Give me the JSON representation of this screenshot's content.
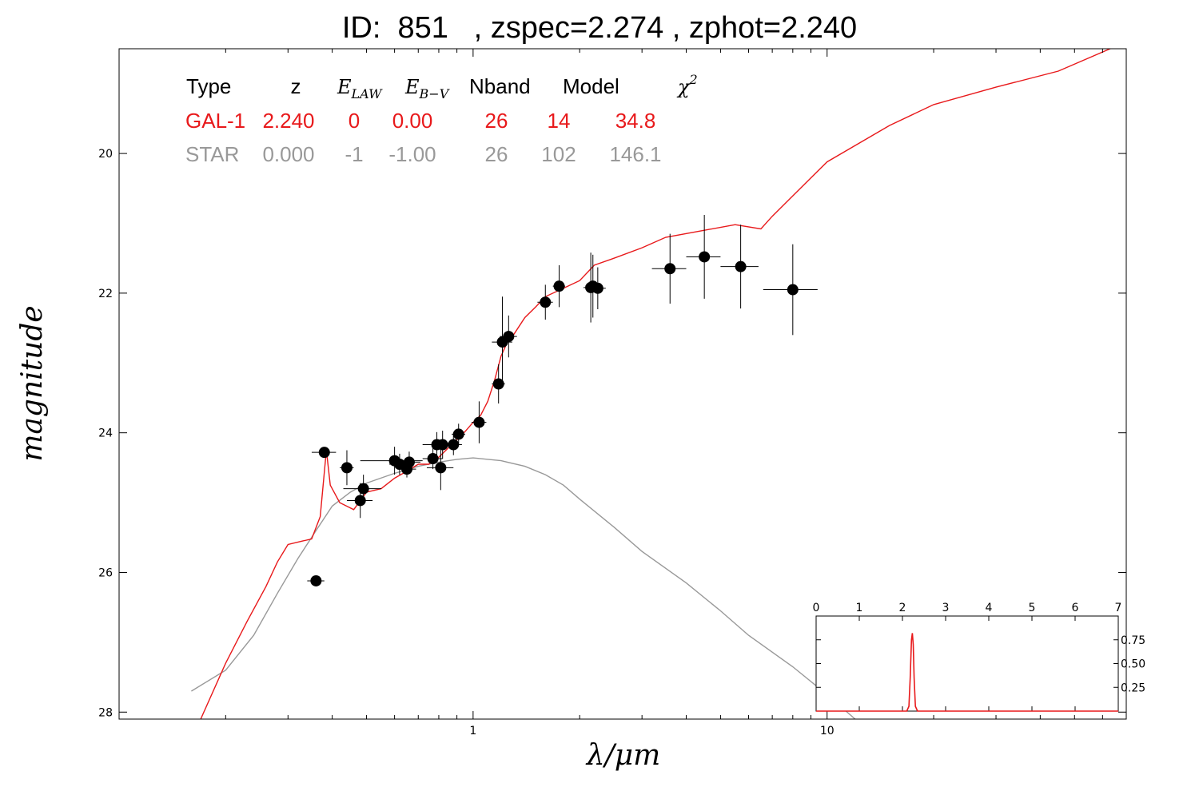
{
  "title": "ID:  851   , zspec=2.274 , zphot=2.240",
  "chart_data": [
    {
      "type": "scatter",
      "title": "ID:  851   , zspec=2.274 , zphot=2.240",
      "xlabel": "λ/μm",
      "ylabel": "magnitude",
      "xscale": "log",
      "xlim": [
        0.1,
        70
      ],
      "ylim": [
        28.1,
        18.5
      ],
      "y_inverted": true,
      "x_ticks": [
        {
          "value": 1,
          "label": "1"
        },
        {
          "value": 10,
          "label": "10"
        }
      ],
      "y_ticks": [
        {
          "value": 20,
          "label": "20"
        },
        {
          "value": 22,
          "label": "22"
        },
        {
          "value": 24,
          "label": "24"
        },
        {
          "value": 26,
          "label": "26"
        },
        {
          "value": 28,
          "label": "28"
        }
      ],
      "grid": false,
      "legend": {
        "placement": "top-left",
        "headers": [
          "Type",
          "z",
          "E",
          "E",
          "Nband",
          "Model",
          "χ"
        ],
        "header_subscripts": [
          "",
          "",
          "LAW",
          "B−V",
          "",
          "",
          ""
        ],
        "header_superscripts": [
          "",
          "",
          "",
          "",
          "",
          "",
          "2"
        ],
        "rows": [
          {
            "name": "GAL-1",
            "color": "#e8191b",
            "values": [
              "GAL-1",
              "2.240",
              "0",
              "0.00",
              "26",
              "14",
              "34.8"
            ]
          },
          {
            "name": "STAR",
            "color": "#999999",
            "values": [
              "STAR",
              "0.000",
              "-1",
              "-1.00",
              "26",
              "102",
              "146.1"
            ]
          }
        ]
      },
      "photometry": [
        {
          "x": 0.36,
          "y": 26.12,
          "xerr": 0.02,
          "yerr": 0.05
        },
        {
          "x": 0.38,
          "y": 24.28,
          "xerr": 0.03,
          "yerr": 0.06
        },
        {
          "x": 0.44,
          "y": 24.5,
          "xerr": 0.02,
          "yerr": 0.25
        },
        {
          "x": 0.48,
          "y": 24.97,
          "xerr": 0.04,
          "yerr": 0.25
        },
        {
          "x": 0.49,
          "y": 24.8,
          "xerr": 0.06,
          "yerr": 0.2
        },
        {
          "x": 0.6,
          "y": 24.4,
          "xerr": 0.12,
          "yerr": 0.2
        },
        {
          "x": 0.62,
          "y": 24.45,
          "xerr": 0.04,
          "yerr": 0.15
        },
        {
          "x": 0.65,
          "y": 24.52,
          "xerr": 0.04,
          "yerr": 0.12
        },
        {
          "x": 0.66,
          "y": 24.42,
          "xerr": 0.05,
          "yerr": 0.15
        },
        {
          "x": 0.77,
          "y": 24.37,
          "xerr": 0.05,
          "yerr": 0.15
        },
        {
          "x": 0.79,
          "y": 24.17,
          "xerr": 0.07,
          "yerr": 0.18
        },
        {
          "x": 0.81,
          "y": 24.5,
          "xerr": 0.07,
          "yerr": 0.32
        },
        {
          "x": 0.82,
          "y": 24.17,
          "xerr": 0.07,
          "yerr": 0.2
        },
        {
          "x": 0.88,
          "y": 24.17,
          "xerr": 0.05,
          "yerr": 0.15
        },
        {
          "x": 0.91,
          "y": 24.02,
          "xerr": 0.04,
          "yerr": 0.15
        },
        {
          "x": 1.04,
          "y": 23.85,
          "xerr": 0.05,
          "yerr": 0.3
        },
        {
          "x": 1.18,
          "y": 23.3,
          "xerr": 0.05,
          "yerr": 0.28
        },
        {
          "x": 1.21,
          "y": 22.7,
          "xerr": 0.08,
          "yerr": 0.65
        },
        {
          "x": 1.26,
          "y": 22.62,
          "xerr": 0.07,
          "yerr": 0.3
        },
        {
          "x": 1.6,
          "y": 22.13,
          "xerr": 0.08,
          "yerr": 0.25
        },
        {
          "x": 1.75,
          "y": 21.9,
          "xerr": 0.07,
          "yerr": 0.3
        },
        {
          "x": 2.15,
          "y": 21.92,
          "xerr": 0.1,
          "yerr": 0.5
        },
        {
          "x": 2.18,
          "y": 21.9,
          "xerr": 0.1,
          "yerr": 0.45
        },
        {
          "x": 2.25,
          "y": 21.93,
          "xerr": 0.12,
          "yerr": 0.3
        },
        {
          "x": 3.6,
          "y": 21.65,
          "xerr": 0.4,
          "yerr": 0.5
        },
        {
          "x": 4.5,
          "y": 21.48,
          "xerr": 0.5,
          "yerr": 0.6
        },
        {
          "x": 5.7,
          "y": 21.62,
          "xerr": 0.7,
          "yerr": 0.6
        },
        {
          "x": 8.0,
          "y": 21.95,
          "xerr": 1.4,
          "yerr": 0.65
        }
      ],
      "series": [
        {
          "name": "GAL-1",
          "color": "#e8191b",
          "points": [
            [
              0.17,
              28.1
            ],
            [
              0.2,
              27.3
            ],
            [
              0.23,
              26.7
            ],
            [
              0.26,
              26.2
            ],
            [
              0.28,
              25.85
            ],
            [
              0.3,
              25.6
            ],
            [
              0.33,
              25.55
            ],
            [
              0.35,
              25.52
            ],
            [
              0.37,
              25.2
            ],
            [
              0.385,
              24.25
            ],
            [
              0.395,
              24.75
            ],
            [
              0.42,
              25.0
            ],
            [
              0.46,
              25.1
            ],
            [
              0.5,
              24.85
            ],
            [
              0.55,
              24.8
            ],
            [
              0.6,
              24.65
            ],
            [
              0.65,
              24.55
            ],
            [
              0.7,
              24.45
            ],
            [
              0.75,
              24.45
            ],
            [
              0.8,
              24.35
            ],
            [
              0.85,
              24.22
            ],
            [
              0.9,
              24.1
            ],
            [
              0.95,
              23.98
            ],
            [
              1.0,
              23.85
            ],
            [
              1.05,
              23.75
            ],
            [
              1.1,
              23.55
            ],
            [
              1.15,
              23.25
            ],
            [
              1.2,
              22.9
            ],
            [
              1.25,
              22.7
            ],
            [
              1.3,
              22.6
            ],
            [
              1.4,
              22.35
            ],
            [
              1.5,
              22.2
            ],
            [
              1.6,
              22.05
            ],
            [
              1.8,
              21.93
            ],
            [
              2.0,
              21.82
            ],
            [
              2.2,
              21.6
            ],
            [
              2.5,
              21.5
            ],
            [
              3.0,
              21.35
            ],
            [
              3.5,
              21.2
            ],
            [
              4.5,
              21.1
            ],
            [
              5.5,
              21.02
            ],
            [
              6.5,
              21.08
            ],
            [
              7.0,
              20.9
            ],
            [
              10.0,
              20.12
            ],
            [
              15.0,
              19.6
            ],
            [
              20.0,
              19.3
            ],
            [
              30.0,
              19.05
            ],
            [
              45.0,
              18.82
            ],
            [
              70.0,
              18.4
            ]
          ]
        },
        {
          "name": "STAR",
          "color": "#999999",
          "points": [
            [
              0.16,
              27.7
            ],
            [
              0.2,
              27.4
            ],
            [
              0.24,
              26.9
            ],
            [
              0.28,
              26.3
            ],
            [
              0.32,
              25.8
            ],
            [
              0.36,
              25.4
            ],
            [
              0.4,
              25.05
            ],
            [
              0.45,
              24.85
            ],
            [
              0.5,
              24.72
            ],
            [
              0.6,
              24.58
            ],
            [
              0.7,
              24.48
            ],
            [
              0.8,
              24.42
            ],
            [
              0.9,
              24.38
            ],
            [
              1.0,
              24.36
            ],
            [
              1.2,
              24.4
            ],
            [
              1.4,
              24.48
            ],
            [
              1.6,
              24.6
            ],
            [
              1.8,
              24.75
            ],
            [
              2.0,
              24.95
            ],
            [
              2.5,
              25.35
            ],
            [
              3.0,
              25.7
            ],
            [
              4.0,
              26.15
            ],
            [
              5.0,
              26.55
            ],
            [
              6.0,
              26.9
            ],
            [
              8.0,
              27.35
            ],
            [
              10.0,
              27.75
            ],
            [
              12.0,
              28.1
            ]
          ]
        }
      ]
    },
    {
      "type": "line",
      "title": "",
      "placement": "bottom-right inset",
      "xlim": [
        0,
        7
      ],
      "ylim": [
        0,
        1.0
      ],
      "x_ticks": [
        "0",
        "1",
        "2",
        "3",
        "4",
        "5",
        "6",
        "7"
      ],
      "y_ticks": [
        "0.25",
        "0.50",
        "0.75"
      ],
      "series": [
        {
          "color": "#e8191b",
          "x": [
            0,
            2.1,
            2.15,
            2.18,
            2.21,
            2.23,
            2.25,
            2.27,
            2.3,
            2.35,
            7
          ],
          "y": [
            0,
            0,
            0.05,
            0.35,
            0.75,
            0.82,
            0.7,
            0.35,
            0.05,
            0,
            0
          ]
        }
      ]
    }
  ]
}
